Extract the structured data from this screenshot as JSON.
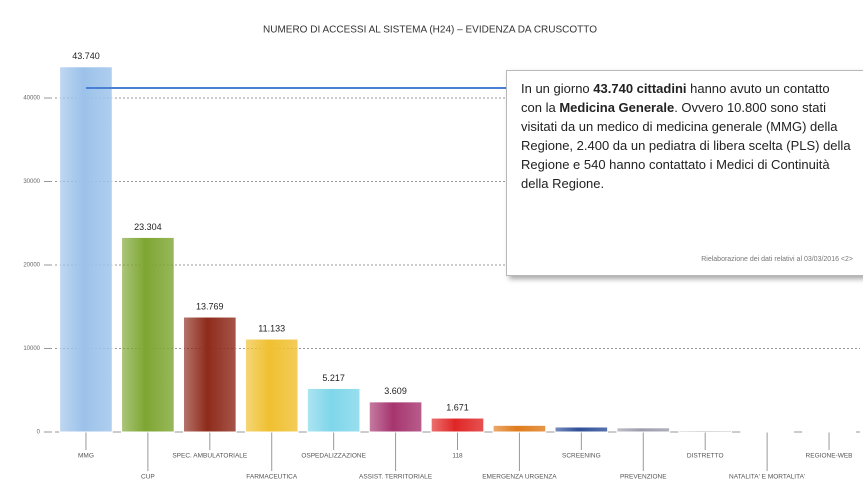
{
  "chart_data": {
    "type": "bar",
    "title": "NUMERO DI ACCESSI AL SISTEMA (H24) – EVIDENZA DA CRUSCOTTO",
    "categories": [
      "MMG",
      "CUP",
      "SPEC. AMBULATORIALE",
      "FARMACEUTICA",
      "OSPEDALIZZAZIONE",
      "ASSIST. TERRITORIALE",
      "118",
      "EMERGENZA URGENZA",
      "SCREENING",
      "PREVENZIONE",
      "DISTRETTO",
      "NATALITA' E MORTALITA'",
      "REGIONE-WEB"
    ],
    "values": [
      43740,
      23304,
      13769,
      11133,
      5217,
      3609,
      1671,
      800,
      600,
      500,
      150,
      80,
      40
    ],
    "value_labels": [
      "43.740",
      "23.304",
      "13.769",
      "11.133",
      "5.217",
      "3.609",
      "1.671",
      null,
      null,
      null,
      null,
      null,
      null
    ],
    "colors": [
      "#9cc2ea",
      "#7ea632",
      "#8e2b1b",
      "#f0c030",
      "#7fd6ea",
      "#a6356f",
      "#e02626",
      "#e07c1c",
      "#2f4f98",
      "#9c9cac",
      "#6a6a6a",
      "#8a8a8a",
      "#b0b0b0"
    ],
    "ylim": [
      0,
      50000
    ],
    "yticks": [
      0,
      10000,
      20000,
      30000,
      40000
    ],
    "grid": true,
    "annotation": {
      "segments": [
        {
          "text": "In un giorno ",
          "bold": false
        },
        {
          "text": "43.740 cittadini",
          "bold": true
        },
        {
          "text": " hanno avuto un contatto con la ",
          "bold": false
        },
        {
          "text": "Medicina Generale",
          "bold": true
        },
        {
          "text": ". Ovvero 10.800 sono stati visitati da un medico di medicina generale (MMG) della Regione, 2.400 da un pediatra di libera scelta (PLS) della Regione e 540 hanno contattato i Medici di Continuità della Regione.",
          "bold": false
        }
      ],
      "note": "Rielaborazione dei dati relativi al 03/03/2016   <2>"
    }
  }
}
